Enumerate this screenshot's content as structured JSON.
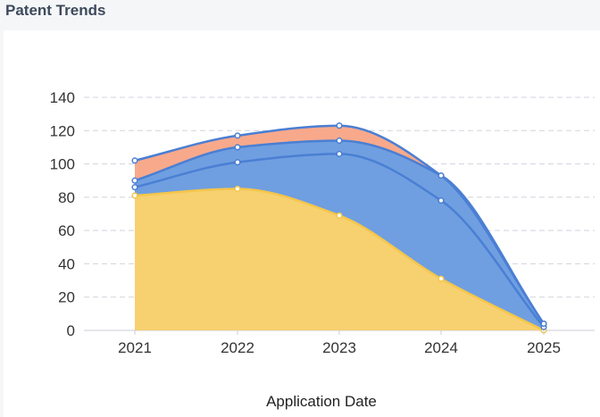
{
  "header": {
    "title": "Patent Trends"
  },
  "chart_data": {
    "type": "area",
    "stacked": true,
    "smooth": true,
    "categories": [
      "2021",
      "2022",
      "2023",
      "2024",
      "2025"
    ],
    "series": [
      {
        "values": [
          81,
          85,
          69,
          31,
          0
        ],
        "color": "#f7d070",
        "line_color": "#f5c64a"
      },
      {
        "values": [
          5,
          16,
          37,
          47,
          2
        ],
        "color": "#6f9fe0",
        "line_color": "#4a7fd4"
      },
      {
        "values": [
          4,
          9,
          8,
          15,
          2
        ],
        "color": "#6f9fe0",
        "line_color": "#4a7fd4"
      },
      {
        "values": [
          12,
          7,
          9,
          0,
          0
        ],
        "color": "#f9a98b",
        "line_color": "#4a7fd4"
      }
    ],
    "xlabel": "Application Date",
    "ylabel": "",
    "ylim": [
      0,
      140
    ],
    "yticks": [
      0,
      20,
      40,
      60,
      80,
      100,
      120,
      140
    ],
    "grid": true,
    "grid_style": "dashed"
  }
}
